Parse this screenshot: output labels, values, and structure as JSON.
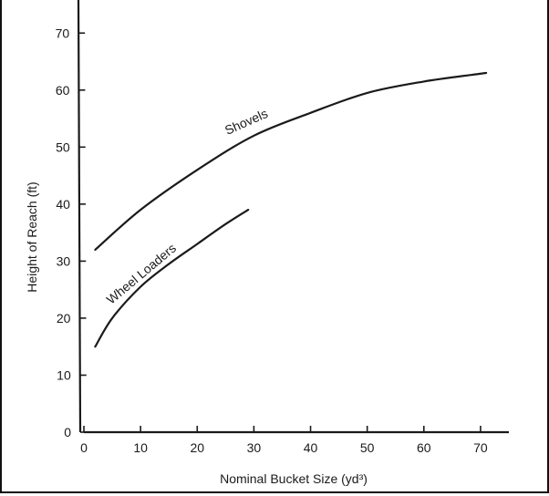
{
  "chart_data": {
    "type": "line",
    "title": "",
    "xlabel": "Nominal Bucket Size (yd³)",
    "ylabel": "Height of Reach (ft)",
    "xlim": [
      0,
      75
    ],
    "ylim": [
      0,
      75
    ],
    "x_ticks": [
      0,
      10,
      20,
      30,
      40,
      50,
      60,
      70
    ],
    "y_ticks": [
      0,
      10,
      20,
      30,
      40,
      50,
      60,
      70
    ],
    "grid": false,
    "legend": "none",
    "colors": {
      "line": "#1a1a1a",
      "axis": "#1a1a1a"
    },
    "series": [
      {
        "name": "Shovels",
        "x": [
          2,
          10,
          20,
          30,
          40,
          50,
          60,
          71
        ],
        "y": [
          32,
          39,
          46,
          52,
          56,
          59.5,
          61.5,
          63
        ]
      },
      {
        "name": "Wheel Loaders",
        "x": [
          2,
          5,
          10,
          15,
          20,
          25,
          29
        ],
        "y": [
          15,
          20,
          25.5,
          29.5,
          33,
          36.5,
          39
        ]
      }
    ]
  }
}
